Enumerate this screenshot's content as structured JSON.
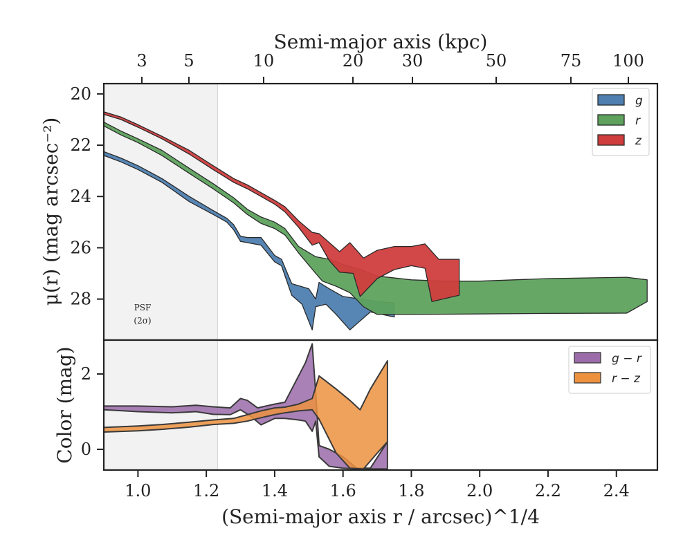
{
  "chart_data": [
    {
      "panel": "surface-brightness",
      "type": "area",
      "ylabel": "μ(r) (mag arcsec⁻²)",
      "top_xlabel": "Semi-major axis (kpc)",
      "top_ticks": [
        3,
        5,
        10,
        20,
        30,
        50,
        75,
        100
      ],
      "top_tick_labels": [
        "3",
        "5",
        "10",
        "20",
        "30",
        "50",
        "75",
        "100"
      ],
      "xlim": [
        0.9,
        2.52
      ],
      "ylim": [
        29.6,
        19.6
      ],
      "y_inverted": true,
      "yticks": [
        20,
        22,
        24,
        26,
        28
      ],
      "yticks_labels": [
        "20",
        "22",
        "24",
        "26",
        "28"
      ],
      "psf_region_x": [
        0.9,
        1.233
      ],
      "psf_label": "PSF",
      "psf_sublabel": "(2σ)",
      "legend_position": "top-right",
      "series": [
        {
          "name": "g",
          "color": "#4e7fb0",
          "upper": [
            [
              0.9,
              22.25
            ],
            [
              0.95,
              22.5
            ],
            [
              1.0,
              22.8
            ],
            [
              1.07,
              23.3
            ],
            [
              1.15,
              24.0
            ],
            [
              1.22,
              24.55
            ],
            [
              1.26,
              24.85
            ],
            [
              1.28,
              25.1
            ],
            [
              1.3,
              25.55
            ],
            [
              1.32,
              25.6
            ],
            [
              1.36,
              25.6
            ],
            [
              1.4,
              26.3
            ],
            [
              1.42,
              26.45
            ],
            [
              1.45,
              27.4
            ],
            [
              1.5,
              27.6
            ],
            [
              1.52,
              28.0
            ],
            [
              1.53,
              27.35
            ],
            [
              1.56,
              27.6
            ],
            [
              1.6,
              27.9
            ],
            [
              1.65,
              28.0
            ],
            [
              1.7,
              28.1
            ],
            [
              1.75,
              28.15
            ]
          ],
          "lower": [
            [
              0.9,
              22.4
            ],
            [
              0.95,
              22.65
            ],
            [
              1.0,
              22.95
            ],
            [
              1.07,
              23.45
            ],
            [
              1.15,
              24.2
            ],
            [
              1.22,
              24.7
            ],
            [
              1.26,
              25.0
            ],
            [
              1.28,
              25.3
            ],
            [
              1.3,
              25.75
            ],
            [
              1.32,
              25.8
            ],
            [
              1.36,
              25.9
            ],
            [
              1.4,
              26.55
            ],
            [
              1.42,
              26.7
            ],
            [
              1.45,
              27.85
            ],
            [
              1.48,
              28.2
            ],
            [
              1.51,
              29.2
            ],
            [
              1.52,
              28.3
            ],
            [
              1.55,
              28.2
            ],
            [
              1.58,
              28.6
            ],
            [
              1.62,
              29.2
            ],
            [
              1.68,
              28.5
            ],
            [
              1.75,
              28.7
            ]
          ]
        },
        {
          "name": "r",
          "color": "#5ea25e",
          "upper": [
            [
              0.9,
              21.1
            ],
            [
              0.95,
              21.45
            ],
            [
              1.0,
              21.75
            ],
            [
              1.07,
              22.2
            ],
            [
              1.15,
              22.9
            ],
            [
              1.22,
              23.5
            ],
            [
              1.28,
              24.05
            ],
            [
              1.32,
              24.5
            ],
            [
              1.36,
              24.8
            ],
            [
              1.4,
              25.0
            ],
            [
              1.43,
              25.25
            ],
            [
              1.47,
              25.95
            ],
            [
              1.52,
              26.35
            ],
            [
              1.56,
              26.45
            ],
            [
              1.6,
              26.65
            ],
            [
              1.65,
              26.85
            ],
            [
              1.7,
              27.1
            ],
            [
              1.8,
              27.25
            ],
            [
              1.9,
              27.3
            ],
            [
              2.0,
              27.3
            ],
            [
              2.2,
              27.2
            ],
            [
              2.43,
              27.15
            ],
            [
              2.49,
              27.25
            ]
          ],
          "lower": [
            [
              0.9,
              21.25
            ],
            [
              0.95,
              21.6
            ],
            [
              1.0,
              21.9
            ],
            [
              1.07,
              22.4
            ],
            [
              1.15,
              23.1
            ],
            [
              1.22,
              23.7
            ],
            [
              1.28,
              24.25
            ],
            [
              1.32,
              24.7
            ],
            [
              1.36,
              25.05
            ],
            [
              1.4,
              25.25
            ],
            [
              1.43,
              25.5
            ],
            [
              1.47,
              26.2
            ],
            [
              1.52,
              27.0
            ],
            [
              1.54,
              27.3
            ],
            [
              1.58,
              27.5
            ],
            [
              1.62,
              27.75
            ],
            [
              1.66,
              28.3
            ],
            [
              1.7,
              28.6
            ],
            [
              1.8,
              28.6
            ],
            [
              2.0,
              28.58
            ],
            [
              2.2,
              28.56
            ],
            [
              2.43,
              28.55
            ],
            [
              2.49,
              28.1
            ]
          ]
        },
        {
          "name": "z",
          "color": "#d03d3d",
          "upper": [
            [
              0.9,
              20.7
            ],
            [
              0.95,
              20.9
            ],
            [
              1.0,
              21.2
            ],
            [
              1.07,
              21.65
            ],
            [
              1.15,
              22.2
            ],
            [
              1.22,
              22.8
            ],
            [
              1.28,
              23.3
            ],
            [
              1.32,
              23.55
            ],
            [
              1.36,
              23.85
            ],
            [
              1.4,
              24.15
            ],
            [
              1.43,
              24.4
            ],
            [
              1.47,
              24.95
            ],
            [
              1.51,
              25.4
            ],
            [
              1.53,
              25.45
            ],
            [
              1.56,
              25.8
            ],
            [
              1.59,
              26.15
            ],
            [
              1.62,
              25.8
            ],
            [
              1.66,
              26.4
            ],
            [
              1.7,
              26.1
            ],
            [
              1.75,
              25.95
            ],
            [
              1.8,
              25.95
            ],
            [
              1.84,
              25.85
            ],
            [
              1.88,
              26.45
            ],
            [
              1.94,
              26.45
            ]
          ],
          "lower": [
            [
              0.9,
              20.8
            ],
            [
              0.95,
              21.0
            ],
            [
              1.0,
              21.3
            ],
            [
              1.07,
              21.75
            ],
            [
              1.15,
              22.35
            ],
            [
              1.22,
              22.95
            ],
            [
              1.28,
              23.45
            ],
            [
              1.32,
              23.7
            ],
            [
              1.36,
              24.0
            ],
            [
              1.4,
              24.3
            ],
            [
              1.43,
              24.6
            ],
            [
              1.47,
              25.2
            ],
            [
              1.51,
              25.9
            ],
            [
              1.53,
              25.8
            ],
            [
              1.56,
              26.5
            ],
            [
              1.59,
              26.95
            ],
            [
              1.63,
              27.0
            ],
            [
              1.65,
              27.9
            ],
            [
              1.7,
              27.2
            ],
            [
              1.75,
              26.85
            ],
            [
              1.8,
              26.7
            ],
            [
              1.84,
              26.8
            ],
            [
              1.86,
              28.1
            ],
            [
              1.94,
              27.85
            ]
          ]
        }
      ]
    },
    {
      "panel": "color-profile",
      "type": "area",
      "xlabel": "(Semi-major axis r / arcsec)^1/4",
      "ylabel": "Color (mag)",
      "xlim": [
        0.9,
        2.52
      ],
      "ylim": [
        -0.55,
        2.9
      ],
      "yticks": [
        0,
        2
      ],
      "yticks_labels": [
        "0",
        "2"
      ],
      "xticks": [
        1.0,
        1.2,
        1.4,
        1.6,
        1.8,
        2.0,
        2.2,
        2.4
      ],
      "xticks_labels": [
        "1.0",
        "1.2",
        "1.4",
        "1.6",
        "1.8",
        "2.0",
        "2.2",
        "2.4"
      ],
      "legend_position": "top-right",
      "series": [
        {
          "name": "g − r",
          "color": "#9b6baa",
          "upper": [
            [
              0.9,
              1.15
            ],
            [
              1.0,
              1.15
            ],
            [
              1.1,
              1.13
            ],
            [
              1.17,
              1.17
            ],
            [
              1.22,
              1.13
            ],
            [
              1.27,
              1.1
            ],
            [
              1.3,
              1.35
            ],
            [
              1.32,
              1.3
            ],
            [
              1.35,
              1.1
            ],
            [
              1.4,
              1.2
            ],
            [
              1.43,
              1.25
            ],
            [
              1.47,
              1.95
            ],
            [
              1.49,
              2.3
            ],
            [
              1.51,
              2.8
            ],
            [
              1.52,
              1.5
            ],
            [
              1.53,
              0.1
            ],
            [
              1.56,
              0.0
            ],
            [
              1.6,
              -0.2
            ],
            [
              1.64,
              -0.5
            ],
            [
              1.68,
              -0.5
            ],
            [
              1.73,
              0.2
            ]
          ],
          "lower": [
            [
              0.9,
              1.05
            ],
            [
              1.0,
              1.0
            ],
            [
              1.1,
              0.97
            ],
            [
              1.17,
              1.0
            ],
            [
              1.22,
              0.93
            ],
            [
              1.27,
              0.92
            ],
            [
              1.3,
              1.05
            ],
            [
              1.33,
              0.88
            ],
            [
              1.36,
              0.65
            ],
            [
              1.4,
              0.82
            ],
            [
              1.43,
              0.82
            ],
            [
              1.47,
              0.78
            ],
            [
              1.49,
              0.75
            ],
            [
              1.51,
              0.48
            ],
            [
              1.52,
              0.75
            ],
            [
              1.53,
              -0.2
            ],
            [
              1.56,
              -0.45
            ],
            [
              1.6,
              -0.5
            ],
            [
              1.64,
              -0.52
            ],
            [
              1.68,
              -0.52
            ],
            [
              1.73,
              -0.52
            ]
          ]
        },
        {
          "name": "r − z",
          "color": "#ec923f",
          "upper": [
            [
              0.9,
              0.58
            ],
            [
              1.0,
              0.62
            ],
            [
              1.07,
              0.66
            ],
            [
              1.15,
              0.72
            ],
            [
              1.22,
              0.78
            ],
            [
              1.28,
              0.82
            ],
            [
              1.32,
              0.92
            ],
            [
              1.36,
              1.02
            ],
            [
              1.4,
              1.1
            ],
            [
              1.43,
              1.12
            ],
            [
              1.47,
              1.2
            ],
            [
              1.51,
              1.35
            ],
            [
              1.53,
              1.95
            ],
            [
              1.58,
              1.6
            ],
            [
              1.62,
              1.3
            ],
            [
              1.65,
              1.05
            ],
            [
              1.68,
              1.6
            ],
            [
              1.73,
              2.35
            ]
          ],
          "lower": [
            [
              0.9,
              0.46
            ],
            [
              1.0,
              0.49
            ],
            [
              1.07,
              0.53
            ],
            [
              1.15,
              0.59
            ],
            [
              1.22,
              0.66
            ],
            [
              1.28,
              0.69
            ],
            [
              1.32,
              0.75
            ],
            [
              1.36,
              0.84
            ],
            [
              1.4,
              0.92
            ],
            [
              1.43,
              0.97
            ],
            [
              1.47,
              1.02
            ],
            [
              1.51,
              1.05
            ],
            [
              1.53,
              0.8
            ],
            [
              1.58,
              -0.1
            ],
            [
              1.62,
              -0.5
            ],
            [
              1.66,
              -0.52
            ],
            [
              1.7,
              -0.1
            ],
            [
              1.73,
              0.2
            ]
          ]
        }
      ]
    }
  ]
}
